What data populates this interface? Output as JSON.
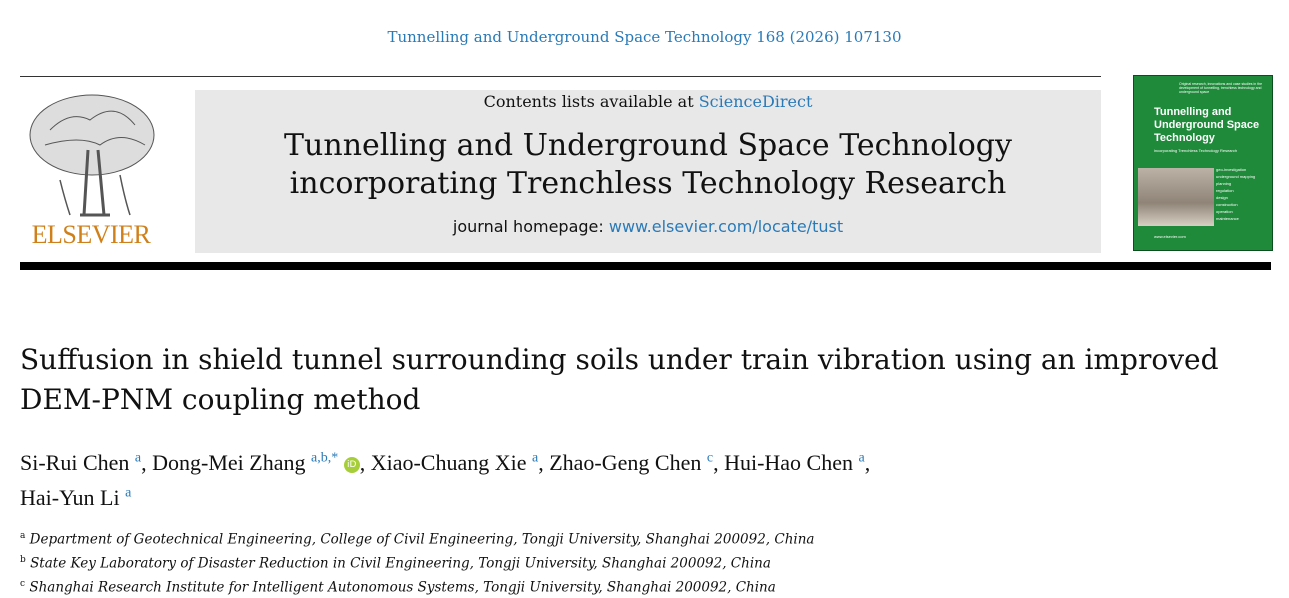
{
  "citation": "Tunnelling and Underground Space Technology 168 (2026) 107130",
  "publisher_logo": {
    "name": "ELSEVIER",
    "color": "#d0801a"
  },
  "masthead": {
    "contents_prefix": "Contents lists available at ",
    "contents_link": "ScienceDirect",
    "journal_title_line1": "Tunnelling and Underground Space Technology",
    "journal_title_line2": "incorporating Trenchless Technology Research",
    "homepage_prefix": "journal homepage: ",
    "homepage_link": "www.elsevier.com/locate/tust"
  },
  "cover": {
    "color": "#1e8a3a",
    "tagline": "Original research, innovations and case studies in the development of tunnelling, trenchless technology and underground space",
    "title": "Tunnelling and Underground Space Technology",
    "subtitle": "incorporating Trenchless Technology Research",
    "topics": [
      "geo-investigation",
      "underground mapping",
      "planning",
      "regulation",
      "design",
      "construction",
      "operation",
      "maintenance"
    ],
    "url": "www.elsevier.com"
  },
  "article": {
    "title": "Suffusion in shield tunnel surrounding soils under train vibration using an improved DEM-PNM coupling method",
    "authors": [
      {
        "name": "Si-Rui Chen",
        "aff": "a"
      },
      {
        "name": "Dong-Mei Zhang",
        "aff": "a,b,*",
        "orcid": "iD"
      },
      {
        "name": "Xiao-Chuang Xie",
        "aff": "a"
      },
      {
        "name": "Zhao-Geng Chen",
        "aff": "c"
      },
      {
        "name": "Hui-Hao Chen",
        "aff": "a"
      },
      {
        "name": "Hai-Yun Li",
        "aff": "a"
      }
    ],
    "affiliations": [
      {
        "key": "a",
        "text": "Department of Geotechnical Engineering, College of Civil Engineering, Tongji University, Shanghai 200092, China"
      },
      {
        "key": "b",
        "text": "State Key Laboratory of Disaster Reduction in Civil Engineering, Tongji University, Shanghai 200092, China"
      },
      {
        "key": "c",
        "text": "Shanghai Research Institute for Intelligent Autonomous Systems, Tongji University, Shanghai 200092, China"
      }
    ]
  }
}
